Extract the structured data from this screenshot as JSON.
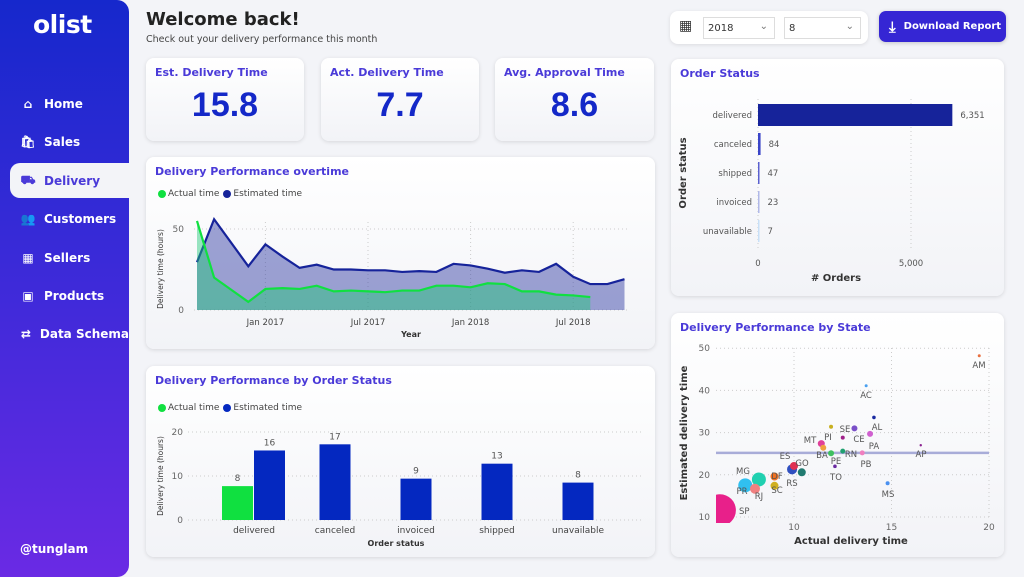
{
  "sidebar": {
    "logo": "olist",
    "items": [
      {
        "label": "Home",
        "icon": "home-icon",
        "glyph": "⌂"
      },
      {
        "label": "Sales",
        "icon": "shopping-bag-icon",
        "glyph": "🛍"
      },
      {
        "label": "Delivery",
        "icon": "truck-icon",
        "glyph": "⛟",
        "active": true
      },
      {
        "label": "Customers",
        "icon": "users-icon",
        "glyph": "👥"
      },
      {
        "label": "Sellers",
        "icon": "store-icon",
        "glyph": "▦"
      },
      {
        "label": "Products",
        "icon": "gift-box-icon",
        "glyph": "▣"
      },
      {
        "label": "Data Schema",
        "icon": "schema-icon",
        "glyph": "⇄"
      }
    ],
    "user": "@tunglam"
  },
  "header": {
    "title": "Welcome back!",
    "subtitle": "Check out your delivery performance this month"
  },
  "filters": {
    "year": "2018",
    "month": "8"
  },
  "download_label": "Download Report",
  "kpis": [
    {
      "label": "Est. Delivery Time",
      "value": "15.8"
    },
    {
      "label": "Act. Delivery Time",
      "value": "7.7"
    },
    {
      "label": "Avg. Approval Time",
      "value": "8.6"
    }
  ],
  "colors": {
    "actual": "#10e040",
    "estimated": "#16239a",
    "bar_estimated": "#0428c0",
    "accent": "#4a3ad8"
  },
  "chart_data": [
    {
      "id": "overtime",
      "type": "area",
      "title": "Delivery Performance overtime",
      "xlabel": "Year",
      "ylabel": "Delivery time (hours)",
      "ylim": [
        0,
        60
      ],
      "yticks": [
        0,
        50
      ],
      "xticks": [
        "Jan 2017",
        "Jul 2017",
        "Jan 2018",
        "Jul 2018"
      ],
      "grid": true,
      "legend": "top-left",
      "x": [
        "2016-09",
        "2016-10",
        "2016-12",
        "2017-01",
        "2017-02",
        "2017-03",
        "2017-04",
        "2017-05",
        "2017-06",
        "2017-07",
        "2017-08",
        "2017-09",
        "2017-10",
        "2017-11",
        "2017-12",
        "2018-01",
        "2018-02",
        "2018-03",
        "2018-04",
        "2018-05",
        "2018-06",
        "2018-07",
        "2018-08",
        "2018-09",
        "2018-10"
      ],
      "series": [
        {
          "name": "Estimated time",
          "values": [
            29.5,
            56,
            27,
            40.5,
            33,
            26,
            28,
            25,
            25,
            24.5,
            24.5,
            23.5,
            24,
            23.5,
            28.5,
            27.5,
            25.5,
            23,
            24.5,
            23.5,
            28.5,
            20.5,
            16,
            16,
            19
          ]
        },
        {
          "name": "Actual time",
          "values": [
            55,
            20,
            5,
            13,
            13.5,
            13,
            15,
            11.5,
            12,
            11.5,
            11,
            12,
            12,
            15,
            15,
            14,
            16.5,
            16,
            11.5,
            11.5,
            9.5,
            9,
            8,
            null,
            null
          ]
        }
      ]
    },
    {
      "id": "by_status",
      "type": "bar",
      "title": "Delivery Performance by Order Status",
      "xlabel": "Order status",
      "ylabel": "Delivery time (hours)",
      "ylim": [
        0,
        20
      ],
      "yticks": [
        0,
        10,
        20
      ],
      "legend": "top-left",
      "categories": [
        "delivered",
        "canceled",
        "invoiced",
        "shipped",
        "unavailable"
      ],
      "series": [
        {
          "name": "Actual time",
          "values": [
            7.7,
            null,
            null,
            null,
            null
          ],
          "labels": [
            "8",
            "",
            "",
            "",
            ""
          ]
        },
        {
          "name": "Estimated time",
          "values": [
            15.8,
            17.2,
            9.4,
            12.8,
            8.5
          ],
          "labels": [
            "16",
            "17",
            "9",
            "13",
            "8"
          ]
        }
      ]
    },
    {
      "id": "order_status",
      "type": "bar",
      "orientation": "horizontal",
      "title": "Order Status",
      "xlabel": "# Orders",
      "ylabel": "Order status",
      "xlim": [
        0,
        7000
      ],
      "xticks": [
        "0",
        "5,000"
      ],
      "categories": [
        "delivered",
        "canceled",
        "shipped",
        "invoiced",
        "unavailable"
      ],
      "values": [
        6351,
        84,
        47,
        23,
        7
      ],
      "labels": [
        "6,351",
        "84",
        "47",
        "23",
        "7"
      ],
      "bar_colors": [
        "#16239a",
        "#3a44c8",
        "#5a60d0",
        "#b0b8e8",
        "#c8e0f8"
      ]
    },
    {
      "id": "by_state",
      "type": "scatter",
      "title": "Delivery Performance by State",
      "xlabel": "Actual delivery time",
      "ylabel": "Estimated delivery time",
      "xlim": [
        6,
        20
      ],
      "ylim": [
        10,
        50
      ],
      "xticks": [
        10,
        15,
        20
      ],
      "yticks": [
        10,
        20,
        30,
        40,
        50
      ],
      "reference_line_y": 25.2,
      "points": [
        {
          "label": "AM",
          "x": 19.5,
          "y": 48.2,
          "size": 1.5,
          "color": "#e87040"
        },
        {
          "label": "AC",
          "x": 13.7,
          "y": 41.1,
          "size": 1.5,
          "color": "#4aa0f0"
        },
        {
          "label": "AL",
          "x": 14.1,
          "y": 33.6,
          "size": 1.8,
          "color": "#1a2aa0"
        },
        {
          "label": "SE",
          "x": 12.5,
          "y": 28.8,
          "size": 2,
          "color": "#a0208a"
        },
        {
          "label": "PI",
          "x": 11.9,
          "y": 31.4,
          "size": 2,
          "color": "#c8b020"
        },
        {
          "label": "CE",
          "x": 13.1,
          "y": 31.0,
          "size": 3,
          "color": "#7a50c8"
        },
        {
          "label": "PA",
          "x": 13.9,
          "y": 29.7,
          "size": 3,
          "color": "#d060d0"
        },
        {
          "label": "MT",
          "x": 11.4,
          "y": 27.4,
          "size": 3.5,
          "color": "#e0409a"
        },
        {
          "label": "BA",
          "x": 11.5,
          "y": 26.4,
          "size": 3,
          "color": "#f0a040"
        },
        {
          "label": "PE",
          "x": 11.9,
          "y": 25.1,
          "size": 3,
          "color": "#40c060"
        },
        {
          "label": "RN",
          "x": 12.5,
          "y": 25.6,
          "size": 2.5,
          "color": "#20a070"
        },
        {
          "label": "PB",
          "x": 13.5,
          "y": 25.2,
          "size": 2.5,
          "color": "#f080c0"
        },
        {
          "label": "AP",
          "x": 16.5,
          "y": 27.0,
          "size": 1.2,
          "color": "#8a2090"
        },
        {
          "label": "TO",
          "x": 12.1,
          "y": 22.0,
          "size": 1.8,
          "color": "#6a2aa0"
        },
        {
          "label": "ES",
          "x": 9.9,
          "y": 21.3,
          "size": 5,
          "color": "#3050c0"
        },
        {
          "label": "GO",
          "x": 10.0,
          "y": 22.1,
          "size": 4,
          "color": "#e03050"
        },
        {
          "label": "RS",
          "x": 10.4,
          "y": 20.6,
          "size": 4,
          "color": "#207a70"
        },
        {
          "label": "MG",
          "x": 8.2,
          "y": 18.9,
          "size": 7,
          "color": "#20d0b0"
        },
        {
          "label": "PR",
          "x": 7.5,
          "y": 17.5,
          "size": 7,
          "color": "#30c0f0"
        },
        {
          "label": "RJ",
          "x": 8.0,
          "y": 16.7,
          "size": 5,
          "color": "#f08080"
        },
        {
          "label": "DF",
          "x": 9.0,
          "y": 19.6,
          "size": 4,
          "color": "#f07020"
        },
        {
          "label": "SC",
          "x": 9.0,
          "y": 17.4,
          "size": 4,
          "color": "#d0b020"
        },
        {
          "label": "MS",
          "x": 14.8,
          "y": 18.0,
          "size": 2,
          "color": "#4a90f0"
        },
        {
          "label": "SP",
          "x": 6.2,
          "y": 11.6,
          "size": 16,
          "color": "#e8208a"
        }
      ]
    }
  ]
}
